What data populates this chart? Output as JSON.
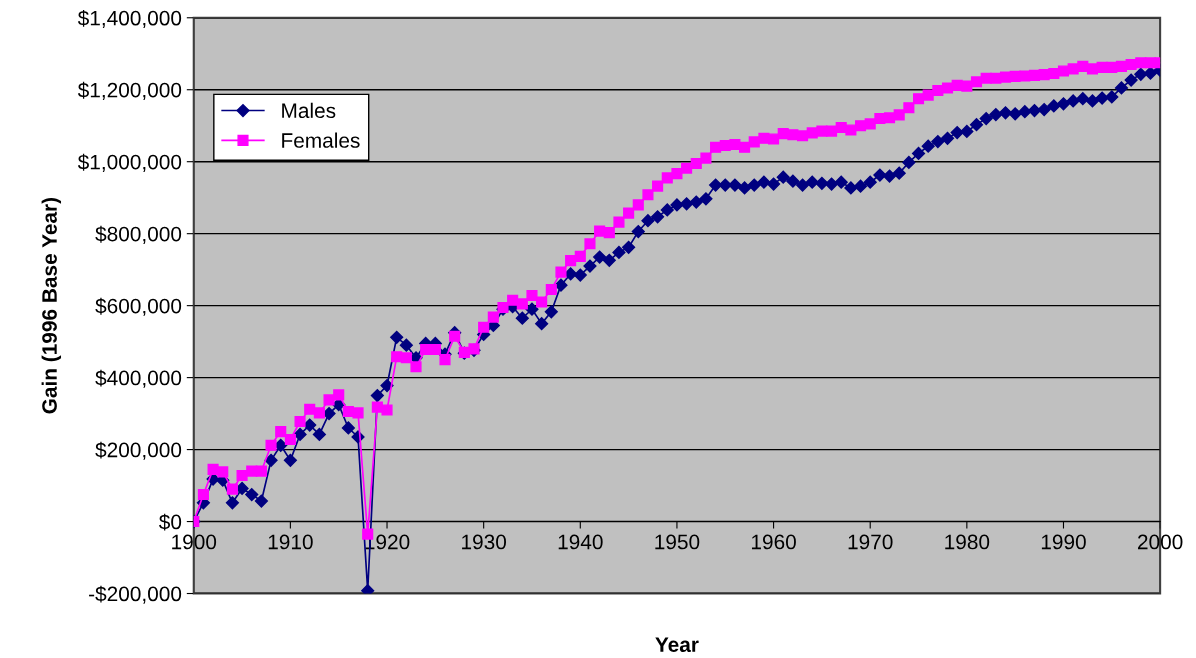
{
  "chart_data": {
    "type": "line",
    "xlabel": "Year",
    "ylabel": "Gain (1996 Base Year)",
    "x": [
      1900,
      1901,
      1902,
      1903,
      1904,
      1905,
      1906,
      1907,
      1908,
      1909,
      1910,
      1911,
      1912,
      1913,
      1914,
      1915,
      1916,
      1917,
      1918,
      1919,
      1920,
      1921,
      1922,
      1923,
      1924,
      1925,
      1926,
      1927,
      1928,
      1929,
      1930,
      1931,
      1932,
      1933,
      1934,
      1935,
      1936,
      1937,
      1938,
      1939,
      1940,
      1941,
      1942,
      1943,
      1944,
      1945,
      1946,
      1947,
      1948,
      1949,
      1950,
      1951,
      1952,
      1953,
      1954,
      1955,
      1956,
      1957,
      1958,
      1959,
      1960,
      1961,
      1962,
      1963,
      1964,
      1965,
      1966,
      1967,
      1968,
      1969,
      1970,
      1971,
      1972,
      1973,
      1974,
      1975,
      1976,
      1977,
      1978,
      1979,
      1980,
      1981,
      1982,
      1983,
      1984,
      1985,
      1986,
      1987,
      1988,
      1989,
      1990,
      1991,
      1992,
      1993,
      1994,
      1995,
      1996,
      1997,
      1998,
      1999,
      2000
    ],
    "series": [
      {
        "name": "Males",
        "color": "#000080",
        "marker": "diamond",
        "values": [
          0,
          52000,
          118000,
          115000,
          52000,
          92000,
          75000,
          57000,
          170000,
          212000,
          170000,
          242000,
          268000,
          242000,
          300000,
          325000,
          260000,
          235000,
          -192000,
          350000,
          378000,
          512000,
          490000,
          455000,
          495000,
          495000,
          465000,
          525000,
          468000,
          476000,
          520000,
          545000,
          590000,
          597000,
          565000,
          590000,
          550000,
          583000,
          657000,
          688000,
          685000,
          710000,
          735000,
          726000,
          748000,
          762000,
          806000,
          836000,
          847000,
          866000,
          880000,
          883000,
          888000,
          897000,
          935000,
          935000,
          935000,
          927000,
          935000,
          943000,
          938000,
          957000,
          946000,
          935000,
          943000,
          940000,
          938000,
          943000,
          927000,
          932000,
          943000,
          963000,
          960000,
          968000,
          998000,
          1023000,
          1043000,
          1056000,
          1065000,
          1081000,
          1084000,
          1103000,
          1120000,
          1131000,
          1136000,
          1133000,
          1139000,
          1142000,
          1145000,
          1155000,
          1161000,
          1169000,
          1175000,
          1169000,
          1177000,
          1180000,
          1205000,
          1227000,
          1243000,
          1246000,
          1254000
        ]
      },
      {
        "name": "Females",
        "color": "#ff00ff",
        "marker": "square",
        "values": [
          0,
          75000,
          145000,
          138000,
          90000,
          128000,
          140000,
          140000,
          212000,
          250000,
          228000,
          278000,
          312000,
          302000,
          338000,
          352000,
          306000,
          302000,
          -35000,
          318000,
          310000,
          458000,
          455000,
          430000,
          478000,
          478000,
          450000,
          515000,
          470000,
          480000,
          540000,
          568000,
          595000,
          615000,
          605000,
          628000,
          610000,
          645000,
          693000,
          725000,
          737000,
          772000,
          807000,
          803000,
          832000,
          857000,
          880000,
          908000,
          932000,
          955000,
          967000,
          982000,
          995000,
          1010000,
          1040000,
          1045000,
          1048000,
          1040000,
          1055000,
          1065000,
          1063000,
          1078000,
          1075000,
          1072000,
          1080000,
          1085000,
          1085000,
          1095000,
          1088000,
          1100000,
          1105000,
          1120000,
          1122000,
          1130000,
          1150000,
          1175000,
          1185000,
          1198000,
          1205000,
          1212000,
          1210000,
          1222000,
          1232000,
          1232000,
          1235000,
          1237000,
          1238000,
          1240000,
          1242000,
          1245000,
          1252000,
          1258000,
          1265000,
          1258000,
          1262000,
          1262000,
          1265000,
          1270000,
          1275000,
          1275000,
          1275000
        ]
      }
    ],
    "xlim": [
      1900,
      2000
    ],
    "xticks": [
      1900,
      1910,
      1920,
      1930,
      1940,
      1950,
      1960,
      1970,
      1980,
      1990,
      2000
    ],
    "ylim": [
      -200000,
      1400000
    ],
    "yticks": [
      {
        "value": -200000,
        "label": "-$200,000"
      },
      {
        "value": 0,
        "label": "$0"
      },
      {
        "value": 200000,
        "label": "$200,000"
      },
      {
        "value": 400000,
        "label": "$400,000"
      },
      {
        "value": 600000,
        "label": "$600,000"
      },
      {
        "value": 800000,
        "label": "$800,000"
      },
      {
        "value": 1000000,
        "label": "$1,000,000"
      },
      {
        "value": 1200000,
        "label": "$1,200,000"
      },
      {
        "value": 1400000,
        "label": "$1,400,000"
      }
    ],
    "grid": "y",
    "legend": "top left",
    "line_style": "solid"
  }
}
